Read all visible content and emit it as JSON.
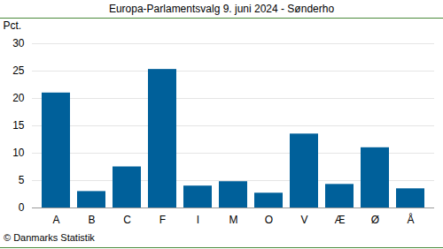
{
  "chart_data": {
    "type": "bar",
    "title": "Europa-Parlamentsvalg 9. juni 2024 - Sønderho",
    "ylabel": "Pct.",
    "caption": "© Danmarks Statistik",
    "categories": [
      "A",
      "B",
      "C",
      "F",
      "I",
      "M",
      "O",
      "V",
      "Æ",
      "Ø",
      "Å"
    ],
    "values": [
      21,
      3,
      7.5,
      25.3,
      4,
      4.8,
      2.7,
      13.5,
      4.3,
      11,
      3.5
    ],
    "color": "#00609a",
    "ylim": [
      0,
      30
    ],
    "yticks": [
      0,
      5,
      10,
      15,
      20,
      25,
      30
    ],
    "grid": true
  }
}
